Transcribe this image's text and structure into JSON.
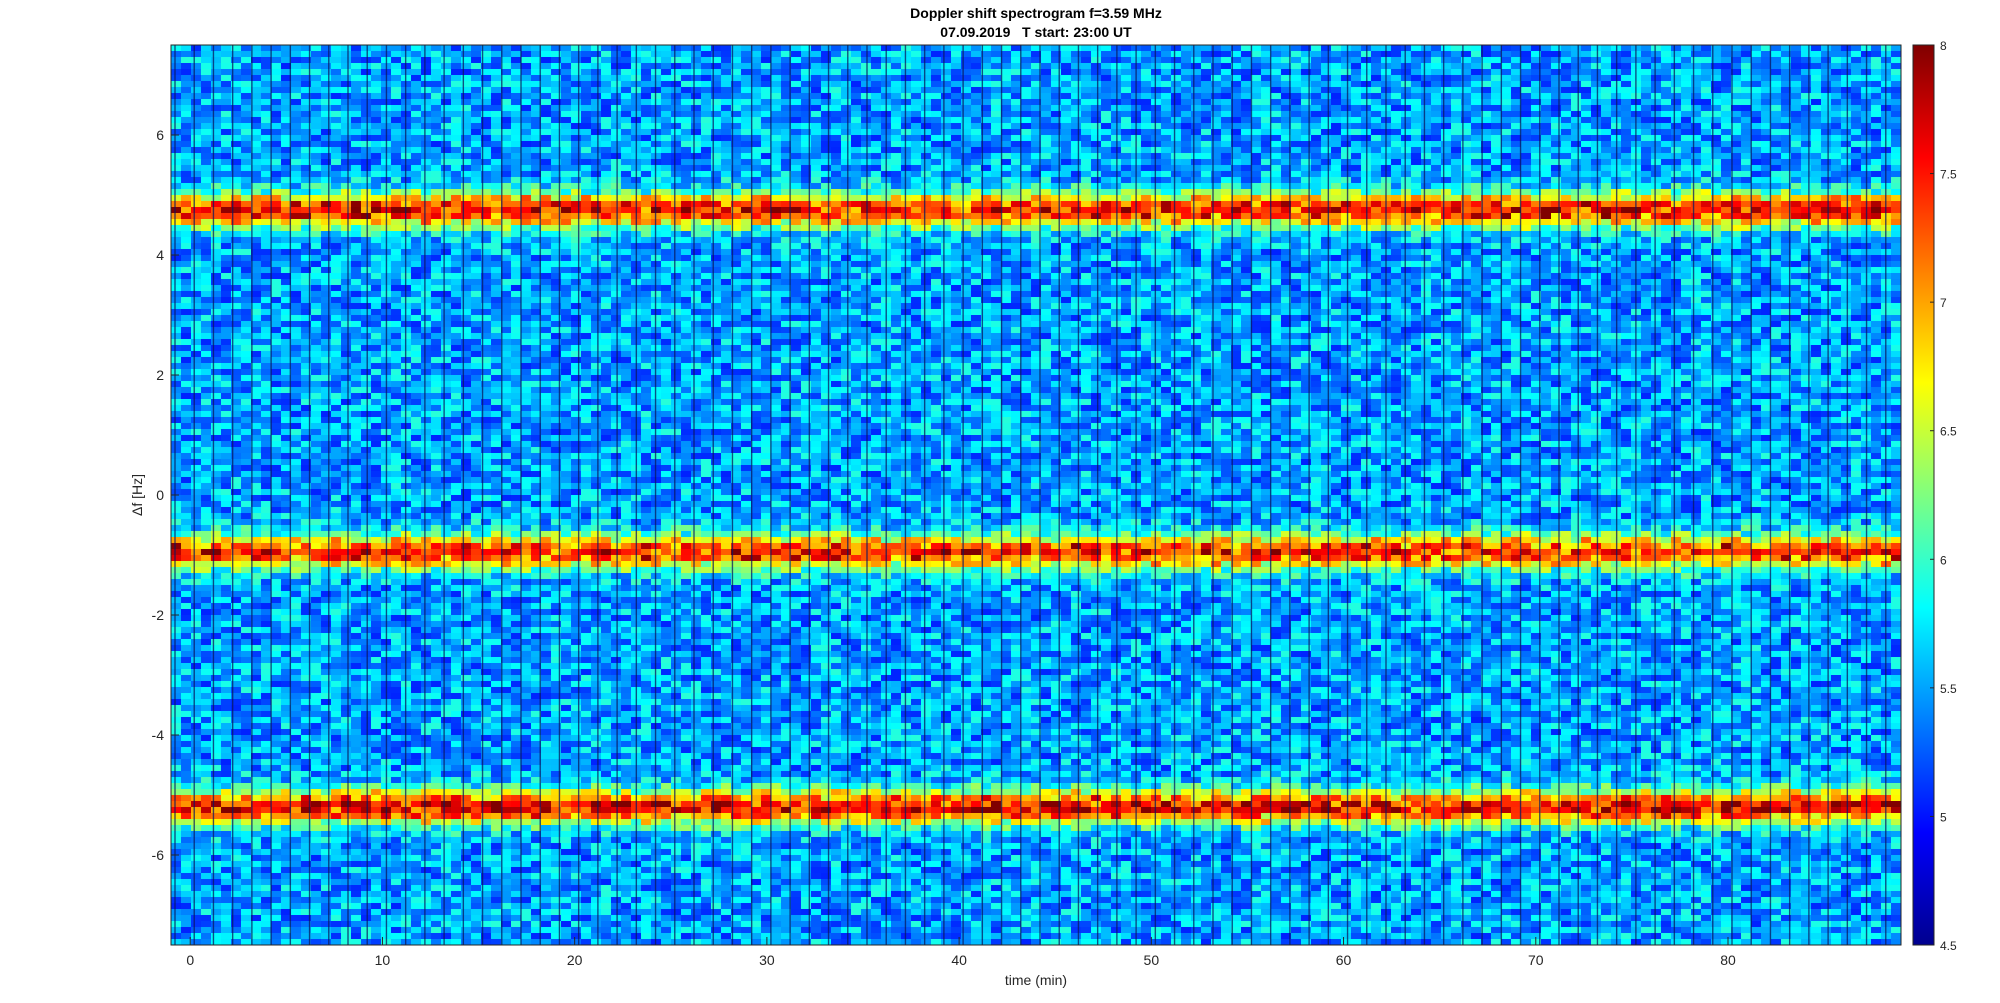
{
  "chart_data": {
    "type": "heatmap",
    "title": "Doppler shift spectrogram f=3.59 MHz",
    "subtitle": "07.09.2019   T start: 23:00 UT",
    "xlabel": "time (min)",
    "ylabel": "Δf [Hz]",
    "xlim": [
      -1,
      89
    ],
    "ylim": [
      -7.5,
      7.5
    ],
    "x_ticks": [
      0,
      10,
      20,
      30,
      40,
      50,
      60,
      70,
      80
    ],
    "y_ticks": [
      6,
      4,
      2,
      0,
      -2,
      -4,
      -6
    ],
    "colormap": "jet",
    "colorbar": {
      "range": [
        4.5,
        8
      ],
      "ticks": [
        "8",
        "7.5",
        "7",
        "6.5",
        "6",
        "5.5",
        "5",
        "4.5"
      ]
    },
    "background_level": 5.5,
    "segment_period_min": 1,
    "bands": [
      {
        "center_hz": 4.75,
        "peak_level": 7.8
      },
      {
        "center_hz": -0.95,
        "peak_level": 7.7
      },
      {
        "center_hz": -5.2,
        "peak_level": 7.9
      }
    ]
  }
}
